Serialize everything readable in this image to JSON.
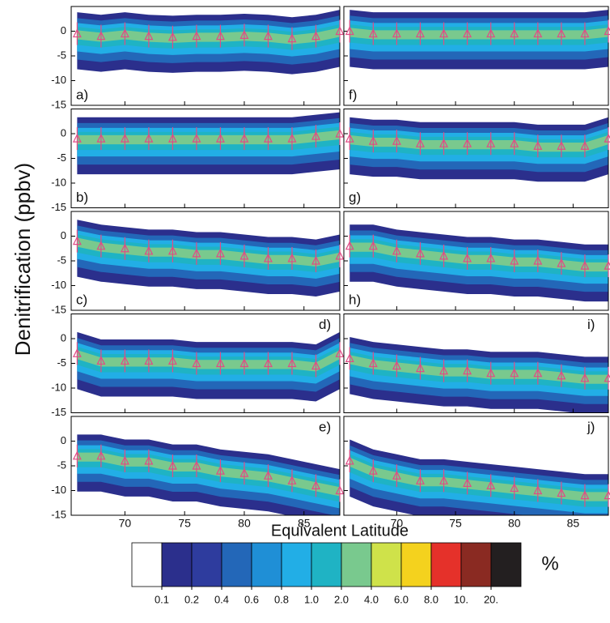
{
  "chart_data": {
    "type": "contour-panels",
    "ylabel": "Denitrification  (ppbv)",
    "xlabel": "Equivalent Latitude",
    "xlim": [
      65.5,
      88
    ],
    "ylim": [
      -15,
      5
    ],
    "xticks": [
      70,
      75,
      80,
      85
    ],
    "yticks": [
      0,
      -5,
      -10,
      -15
    ],
    "marker_color": "#e04c86",
    "panels": [
      {
        "label": "a)",
        "x": [
          66,
          68,
          70,
          72,
          74,
          76,
          78,
          80,
          82,
          84,
          86,
          88
        ],
        "values": [
          -0.5,
          -1,
          -0.5,
          -1,
          -1.2,
          -1,
          -1,
          -0.8,
          -1,
          -1.5,
          -1,
          0
        ]
      },
      {
        "label": "b)",
        "x": [
          66,
          68,
          70,
          72,
          74,
          76,
          78,
          80,
          82,
          84,
          86,
          88
        ],
        "values": [
          -1,
          -1,
          -1,
          -1,
          -1,
          -1,
          -1,
          -1,
          -1,
          -1,
          -0.5,
          0
        ]
      },
      {
        "label": "c)",
        "x": [
          66,
          68,
          70,
          72,
          74,
          76,
          78,
          80,
          82,
          84,
          86,
          88
        ],
        "values": [
          -1,
          -2,
          -2.5,
          -3,
          -3,
          -3.5,
          -3.5,
          -4,
          -4.5,
          -4.5,
          -5,
          -4
        ]
      },
      {
        "label": "d)",
        "x": [
          66,
          68,
          70,
          72,
          74,
          76,
          78,
          80,
          82,
          84,
          86,
          88
        ],
        "values": [
          -3,
          -4.5,
          -4.5,
          -4.5,
          -4.5,
          -5,
          -5,
          -5,
          -5,
          -5,
          -5.5,
          -3
        ]
      },
      {
        "label": "e)",
        "x": [
          66,
          68,
          70,
          72,
          74,
          76,
          78,
          80,
          82,
          84,
          86,
          88
        ],
        "values": [
          -3,
          -3,
          -4,
          -4,
          -5,
          -5,
          -6,
          -6.5,
          -7,
          -8,
          -9,
          -10
        ]
      },
      {
        "label": "f)",
        "x": [
          66,
          68,
          70,
          72,
          74,
          76,
          78,
          80,
          82,
          84,
          86,
          88
        ],
        "values": [
          0,
          -0.5,
          -0.5,
          -0.5,
          -0.5,
          -0.5,
          -0.5,
          -0.5,
          -0.5,
          -0.5,
          -0.5,
          0
        ]
      },
      {
        "label": "g)",
        "x": [
          66,
          68,
          70,
          72,
          74,
          76,
          78,
          80,
          82,
          84,
          86,
          88
        ],
        "values": [
          -1,
          -1.5,
          -1.5,
          -2,
          -2,
          -2,
          -2,
          -2,
          -2.5,
          -2.5,
          -2.5,
          -1
        ]
      },
      {
        "label": "h)",
        "x": [
          66,
          68,
          70,
          72,
          74,
          76,
          78,
          80,
          82,
          84,
          86,
          88
        ],
        "values": [
          -2,
          -2,
          -3,
          -3.5,
          -4,
          -4.5,
          -4.5,
          -5,
          -5,
          -5.5,
          -6,
          -6
        ]
      },
      {
        "label": "i)",
        "x": [
          66,
          68,
          70,
          72,
          74,
          76,
          78,
          80,
          82,
          84,
          86,
          88
        ],
        "values": [
          -4,
          -5,
          -5.5,
          -6,
          -6.5,
          -6.5,
          -7,
          -7,
          -7,
          -7.5,
          -8,
          -8
        ]
      },
      {
        "label": "j)",
        "x": [
          66,
          68,
          70,
          72,
          74,
          76,
          78,
          80,
          82,
          84,
          86,
          88
        ],
        "values": [
          -4,
          -6,
          -7,
          -8,
          -8,
          -8.5,
          -9,
          -9.5,
          -10,
          -10.5,
          -11,
          -11
        ]
      }
    ],
    "colorbar": {
      "label": "%",
      "colors": [
        "#ffffff",
        "#2b2f8c",
        "#2e3c9e",
        "#2367b8",
        "#1f8fd6",
        "#22aee6",
        "#1fb3c4",
        "#79c98e",
        "#cfe24a",
        "#f4d21e",
        "#e5312a",
        "#8a2a22",
        "#231f20"
      ],
      "ticks": [
        0.1,
        0.2,
        0.4,
        0.6,
        0.8,
        {
          "value": 1,
          "label": "1.0"
        },
        {
          "value": 2,
          "label": "2.0"
        },
        {
          "value": 4,
          "label": "4.0"
        },
        {
          "value": 6,
          "label": "6.0"
        },
        {
          "value": 8,
          "label": "8.0"
        },
        {
          "value": 10,
          "label": "10."
        },
        {
          "value": 20,
          "label": "20."
        }
      ]
    }
  }
}
